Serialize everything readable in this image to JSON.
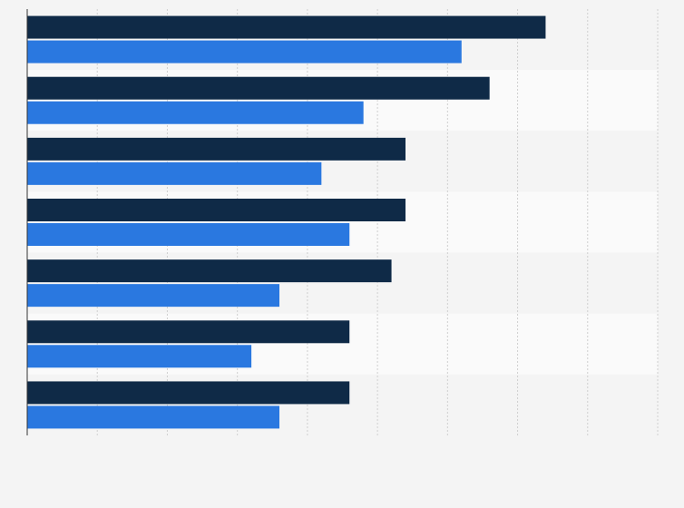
{
  "chart_data": {
    "type": "bar",
    "orientation": "horizontal",
    "title": "",
    "xlabel": "",
    "ylabel": "",
    "categories": [
      "",
      "",
      "",
      "",
      "",
      "",
      ""
    ],
    "series": [
      {
        "color": "#0f2a47",
        "values": [
          37,
          33,
          27,
          27,
          26,
          23,
          23
        ]
      },
      {
        "color": "#2a78e0",
        "values": [
          31,
          24,
          21,
          23,
          18,
          16,
          18
        ]
      }
    ],
    "xlim": [
      0,
      45
    ],
    "x_grid_step": 5,
    "grid": true,
    "legend": "none"
  }
}
